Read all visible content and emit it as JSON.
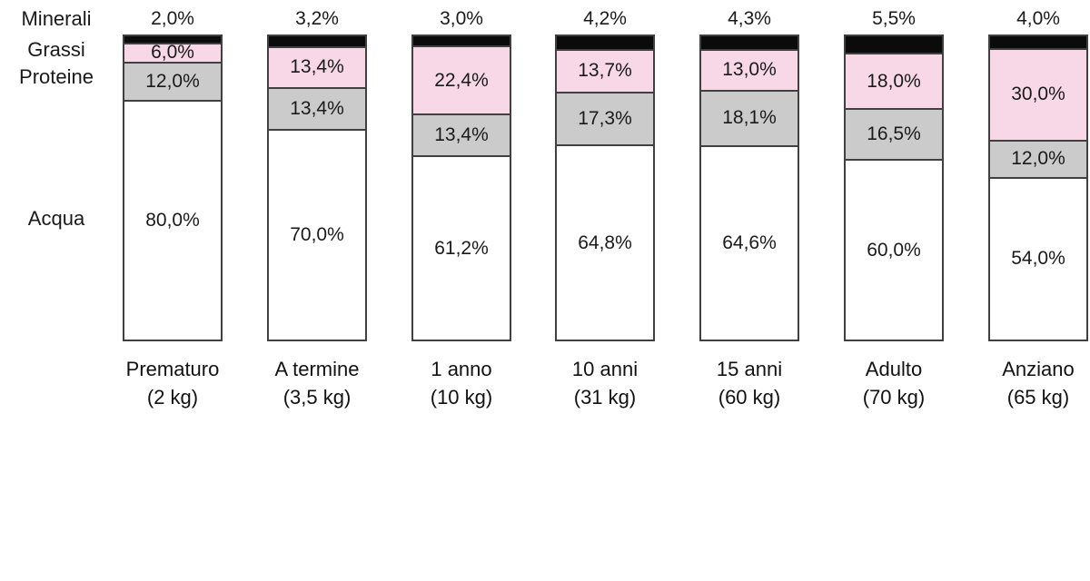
{
  "chart_data": {
    "type": "bar",
    "subtype": "stacked-100-percent",
    "title": "",
    "unit": "%",
    "decimal_separator": ",",
    "legend_position": "left",
    "grid": false,
    "border_color": "#404040",
    "series": [
      {
        "name": "Minerali",
        "color": "#0b0b0b"
      },
      {
        "name": "Grassi",
        "color": "#f8d8e7"
      },
      {
        "name": "Proteine",
        "color": "#cbcbcb"
      },
      {
        "name": "Acqua",
        "color": "#ffffff"
      }
    ],
    "categories": [
      {
        "name": "Prematuro",
        "weight": "(2 kg)",
        "values": [
          2.0,
          6.0,
          12.0,
          80.0
        ],
        "labels": [
          "2,0%",
          "6,0%",
          "12,0%",
          "80,0%"
        ]
      },
      {
        "name": "A termine",
        "weight": "(3,5 kg)",
        "values": [
          3.2,
          13.4,
          13.4,
          70.0
        ],
        "labels": [
          "3,2%",
          "13,4%",
          "13,4%",
          "70,0%"
        ]
      },
      {
        "name": "1 anno",
        "weight": "(10 kg)",
        "values": [
          3.0,
          22.4,
          13.4,
          61.2
        ],
        "labels": [
          "3,0%",
          "22,4%",
          "13,4%",
          "61,2%"
        ]
      },
      {
        "name": "10 anni",
        "weight": "(31 kg)",
        "values": [
          4.2,
          13.7,
          17.3,
          64.8
        ],
        "labels": [
          "4,2%",
          "13,7%",
          "17,3%",
          "64,8%"
        ]
      },
      {
        "name": "15 anni",
        "weight": "(60 kg)",
        "values": [
          4.3,
          13.0,
          18.1,
          64.6
        ],
        "labels": [
          "4,3%",
          "13,0%",
          "18,1%",
          "64,6%"
        ]
      },
      {
        "name": "Adulto",
        "weight": "(70 kg)",
        "values": [
          5.5,
          18.0,
          16.5,
          60.0
        ],
        "labels": [
          "5,5%",
          "18,0%",
          "16,5%",
          "60,0%"
        ]
      },
      {
        "name": "Anziano",
        "weight": "(65 kg)",
        "values": [
          4.0,
          30.0,
          12.0,
          54.0
        ],
        "labels": [
          "4,0%",
          "30,0%",
          "12,0%",
          "54,0%"
        ]
      }
    ]
  }
}
